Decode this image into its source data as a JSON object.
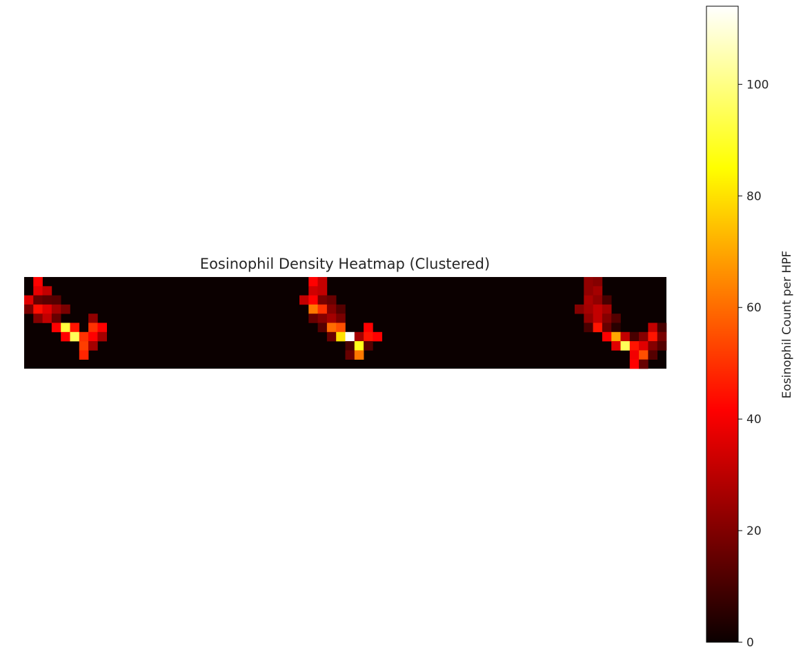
{
  "chart_data": {
    "type": "heatmap",
    "title": "Eosinophil Density Heatmap (Clustered)",
    "colormap": "hot",
    "colorbar": {
      "label": "Eosinophil Count per HPF",
      "ticks": [
        0,
        20,
        40,
        60,
        80,
        100
      ],
      "range": [
        0,
        114
      ]
    },
    "n_rows": 10,
    "n_cols": 70,
    "grid": false,
    "cells": [
      [
        0,
        1,
        42
      ],
      [
        0,
        31,
        40
      ],
      [
        0,
        32,
        30
      ],
      [
        0,
        61,
        22
      ],
      [
        0,
        62,
        20
      ],
      [
        1,
        1,
        36
      ],
      [
        1,
        2,
        30
      ],
      [
        1,
        31,
        32
      ],
      [
        1,
        32,
        30
      ],
      [
        1,
        61,
        22
      ],
      [
        1,
        62,
        25
      ],
      [
        2,
        0,
        35
      ],
      [
        2,
        1,
        15
      ],
      [
        2,
        2,
        13
      ],
      [
        2,
        3,
        12
      ],
      [
        2,
        30,
        30
      ],
      [
        2,
        31,
        40
      ],
      [
        2,
        32,
        18
      ],
      [
        2,
        33,
        15
      ],
      [
        2,
        61,
        26
      ],
      [
        2,
        62,
        22
      ],
      [
        2,
        63,
        10
      ],
      [
        3,
        0,
        18
      ],
      [
        3,
        1,
        44
      ],
      [
        3,
        2,
        35
      ],
      [
        3,
        3,
        25
      ],
      [
        3,
        4,
        18
      ],
      [
        3,
        31,
        62
      ],
      [
        3,
        32,
        50
      ],
      [
        3,
        33,
        20
      ],
      [
        3,
        34,
        12
      ],
      [
        3,
        60,
        20
      ],
      [
        3,
        61,
        25
      ],
      [
        3,
        62,
        30
      ],
      [
        3,
        63,
        25
      ],
      [
        4,
        1,
        20
      ],
      [
        4,
        2,
        30
      ],
      [
        4,
        3,
        15
      ],
      [
        4,
        7,
        22
      ],
      [
        4,
        31,
        15
      ],
      [
        4,
        32,
        20
      ],
      [
        4,
        33,
        25
      ],
      [
        4,
        34,
        18
      ],
      [
        4,
        61,
        22
      ],
      [
        4,
        62,
        30
      ],
      [
        4,
        63,
        20
      ],
      [
        4,
        64,
        12
      ],
      [
        5,
        3,
        40
      ],
      [
        5,
        4,
        92
      ],
      [
        5,
        5,
        45
      ],
      [
        5,
        7,
        50
      ],
      [
        5,
        8,
        40
      ],
      [
        5,
        32,
        12
      ],
      [
        5,
        33,
        60
      ],
      [
        5,
        34,
        55
      ],
      [
        5,
        37,
        40
      ],
      [
        5,
        61,
        10
      ],
      [
        5,
        62,
        45
      ],
      [
        5,
        63,
        15
      ],
      [
        5,
        64,
        5
      ],
      [
        5,
        68,
        30
      ],
      [
        5,
        69,
        10
      ],
      [
        6,
        4,
        40
      ],
      [
        6,
        5,
        95
      ],
      [
        6,
        6,
        50
      ],
      [
        6,
        7,
        40
      ],
      [
        6,
        8,
        25
      ],
      [
        6,
        33,
        15
      ],
      [
        6,
        34,
        80
      ],
      [
        6,
        35,
        114
      ],
      [
        6,
        36,
        25
      ],
      [
        6,
        37,
        45
      ],
      [
        6,
        38,
        40
      ],
      [
        6,
        63,
        40
      ],
      [
        6,
        64,
        70
      ],
      [
        6,
        65,
        30
      ],
      [
        6,
        66,
        10
      ],
      [
        6,
        67,
        20
      ],
      [
        6,
        68,
        45
      ],
      [
        6,
        69,
        18
      ],
      [
        7,
        6,
        52
      ],
      [
        7,
        7,
        25
      ],
      [
        7,
        35,
        10
      ],
      [
        7,
        36,
        88
      ],
      [
        7,
        37,
        12
      ],
      [
        7,
        64,
        35
      ],
      [
        7,
        65,
        95
      ],
      [
        7,
        66,
        45
      ],
      [
        7,
        67,
        35
      ],
      [
        7,
        68,
        20
      ],
      [
        7,
        69,
        12
      ],
      [
        8,
        6,
        48
      ],
      [
        8,
        35,
        15
      ],
      [
        8,
        36,
        62
      ],
      [
        8,
        66,
        38
      ],
      [
        8,
        67,
        55
      ],
      [
        8,
        68,
        12
      ],
      [
        9,
        66,
        40
      ],
      [
        9,
        67,
        15
      ]
    ]
  }
}
